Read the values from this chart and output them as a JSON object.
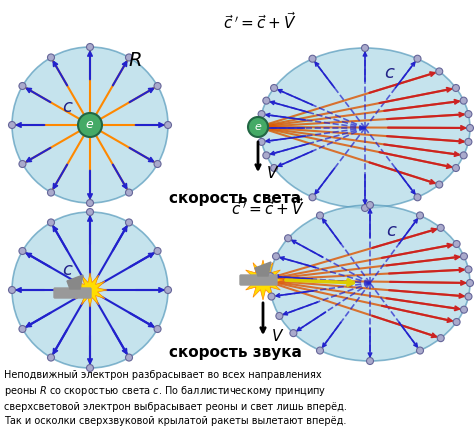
{
  "title": "",
  "bg_color": "#ffffff",
  "circle_fill": "#add8e6",
  "circle_alpha": 0.7,
  "circle_edge": "#4488aa",
  "arrow_blue": "#2222cc",
  "arrow_orange": "#ff8800",
  "arrow_red": "#cc2222",
  "arrow_yellow": "#ffcc00",
  "text_color": "#000000",
  "label_sveta": "скорость света",
  "label_zvuka": "скорость звука",
  "label_R": "$R$",
  "label_c": "$c$",
  "label_V": "$V$",
  "label_e": "$e$",
  "bottom_text": "Неподвижный электрон разбрасывает во всех направлениях\nреоны $R$ со скоростью света $c$. По баллистическому принципу\nсверхсветовой электрон выбрасывает реоны и свет лишь вперёд.\nТак и осколки сверхзвуковой крылатой ракеты вылетают вперёд.",
  "figsize": [
    4.74,
    4.29
  ],
  "dpi": 100
}
